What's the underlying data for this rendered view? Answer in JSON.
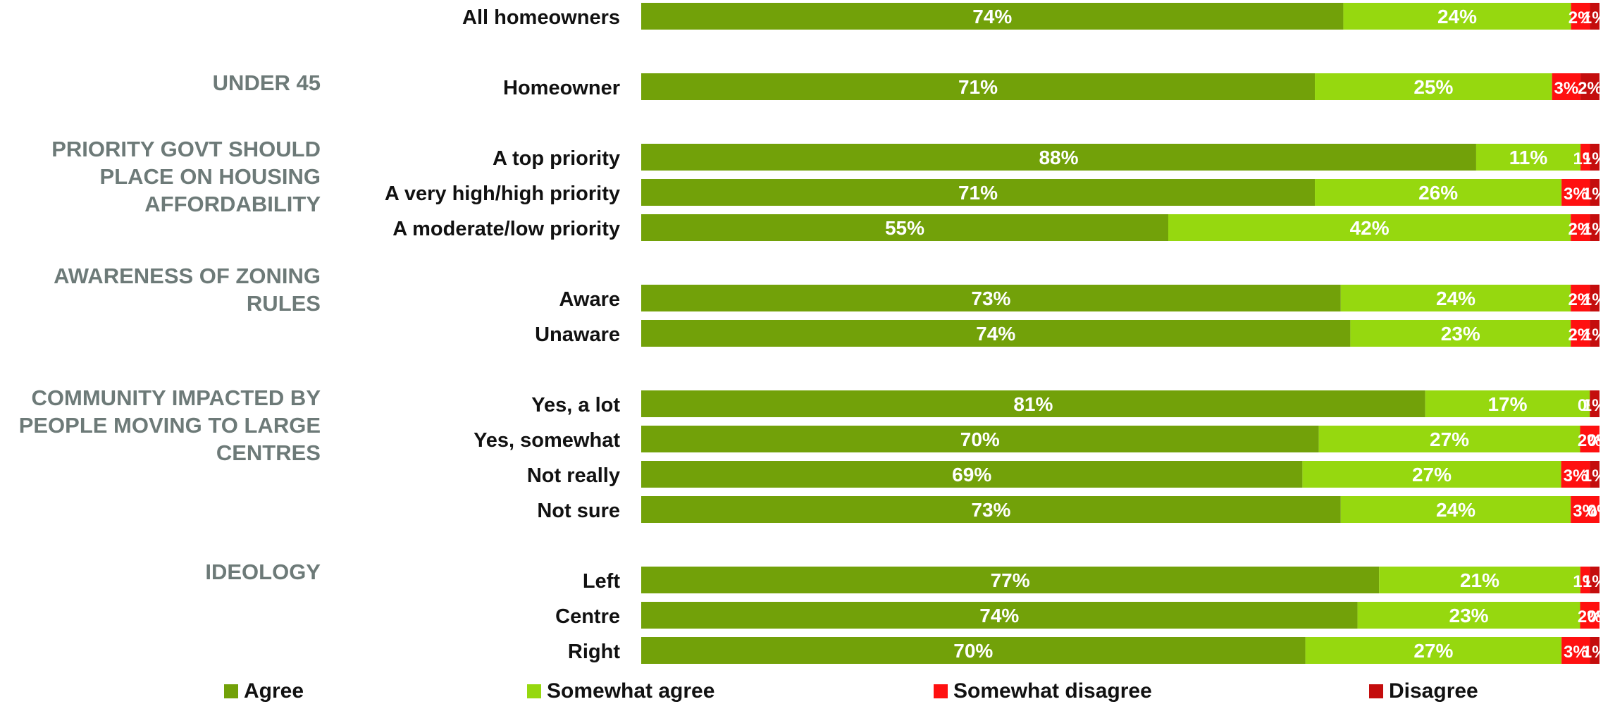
{
  "colors": {
    "agree": "#72a109",
    "somewhat_agree": "#96d80f",
    "somewhat_disagree": "#ff1010",
    "disagree": "#c40d0d",
    "group_label": "#6d7a78"
  },
  "chart_data": {
    "type": "bar",
    "orientation": "horizontal",
    "stacked": true,
    "xlim": [
      0,
      100
    ],
    "grid": false,
    "legend_position": "bottom",
    "series": [
      {
        "name": "Agree",
        "color_key": "agree"
      },
      {
        "name": "Somewhat agree",
        "color_key": "somewhat_agree"
      },
      {
        "name": "Somewhat disagree",
        "color_key": "somewhat_disagree"
      },
      {
        "name": "Disagree",
        "color_key": "disagree"
      }
    ],
    "groups": [
      "UNDER 45",
      "PRIORITY GOVT SHOULD PLACE ON HOUSING AFFORDABILITY",
      "AWARENESS OF ZONING RULES",
      "COMMUNITY IMPACTED BY PEOPLE MOVING TO LARGE CENTRES",
      "IDEOLOGY"
    ],
    "rows": [
      {
        "label": "All homeowners",
        "group": null,
        "values": [
          74,
          24,
          2,
          1
        ],
        "labels": [
          "74%",
          "24%",
          "2%",
          "1%"
        ]
      },
      {
        "label": "Homeowner",
        "group": 0,
        "values": [
          71,
          25,
          3,
          2
        ],
        "labels": [
          "71%",
          "25%",
          "3%",
          "2%"
        ]
      },
      {
        "label": "A top priority",
        "group": 1,
        "values": [
          88,
          11,
          1,
          1
        ],
        "labels": [
          "88%",
          "11%",
          "1%",
          "1%"
        ]
      },
      {
        "label": "A very high/high priority",
        "group": 1,
        "values": [
          71,
          26,
          3,
          1
        ],
        "labels": [
          "71%",
          "26%",
          "3%",
          "1%"
        ]
      },
      {
        "label": "A moderate/low priority",
        "group": 1,
        "values": [
          55,
          42,
          2,
          1
        ],
        "labels": [
          "55%",
          "42%",
          "2%",
          "1%"
        ]
      },
      {
        "label": "Aware",
        "group": 2,
        "values": [
          73,
          24,
          2,
          1
        ],
        "labels": [
          "73%",
          "24%",
          "2%",
          "1%"
        ]
      },
      {
        "label": "Unaware",
        "group": 2,
        "values": [
          74,
          23,
          2,
          1
        ],
        "labels": [
          "74%",
          "23%",
          "2%",
          "1%"
        ]
      },
      {
        "label": "Yes, a lot",
        "group": 3,
        "values": [
          81,
          17,
          0,
          1
        ],
        "labels": [
          "81%",
          "17%",
          "0%",
          "1%"
        ]
      },
      {
        "label": "Yes, somewhat",
        "group": 3,
        "values": [
          70,
          27,
          2,
          0
        ],
        "labels": [
          "70%",
          "27%",
          "2%",
          "0%"
        ]
      },
      {
        "label": "Not really",
        "group": 3,
        "values": [
          69,
          27,
          3,
          1
        ],
        "labels": [
          "69%",
          "27%",
          "3%",
          "1%"
        ]
      },
      {
        "label": "Not sure",
        "group": 3,
        "values": [
          73,
          24,
          3,
          0
        ],
        "labels": [
          "73%",
          "24%",
          "3%",
          "0%"
        ]
      },
      {
        "label": "Left",
        "group": 4,
        "values": [
          77,
          21,
          1,
          1
        ],
        "labels": [
          "77%",
          "21%",
          "1%",
          "1%"
        ]
      },
      {
        "label": "Centre",
        "group": 4,
        "values": [
          74,
          23,
          2,
          0
        ],
        "labels": [
          "74%",
          "23%",
          "2%",
          "0%"
        ]
      },
      {
        "label": "Right",
        "group": 4,
        "values": [
          70,
          27,
          3,
          1
        ],
        "labels": [
          "70%",
          "27%",
          "3%",
          "1%"
        ]
      }
    ]
  }
}
